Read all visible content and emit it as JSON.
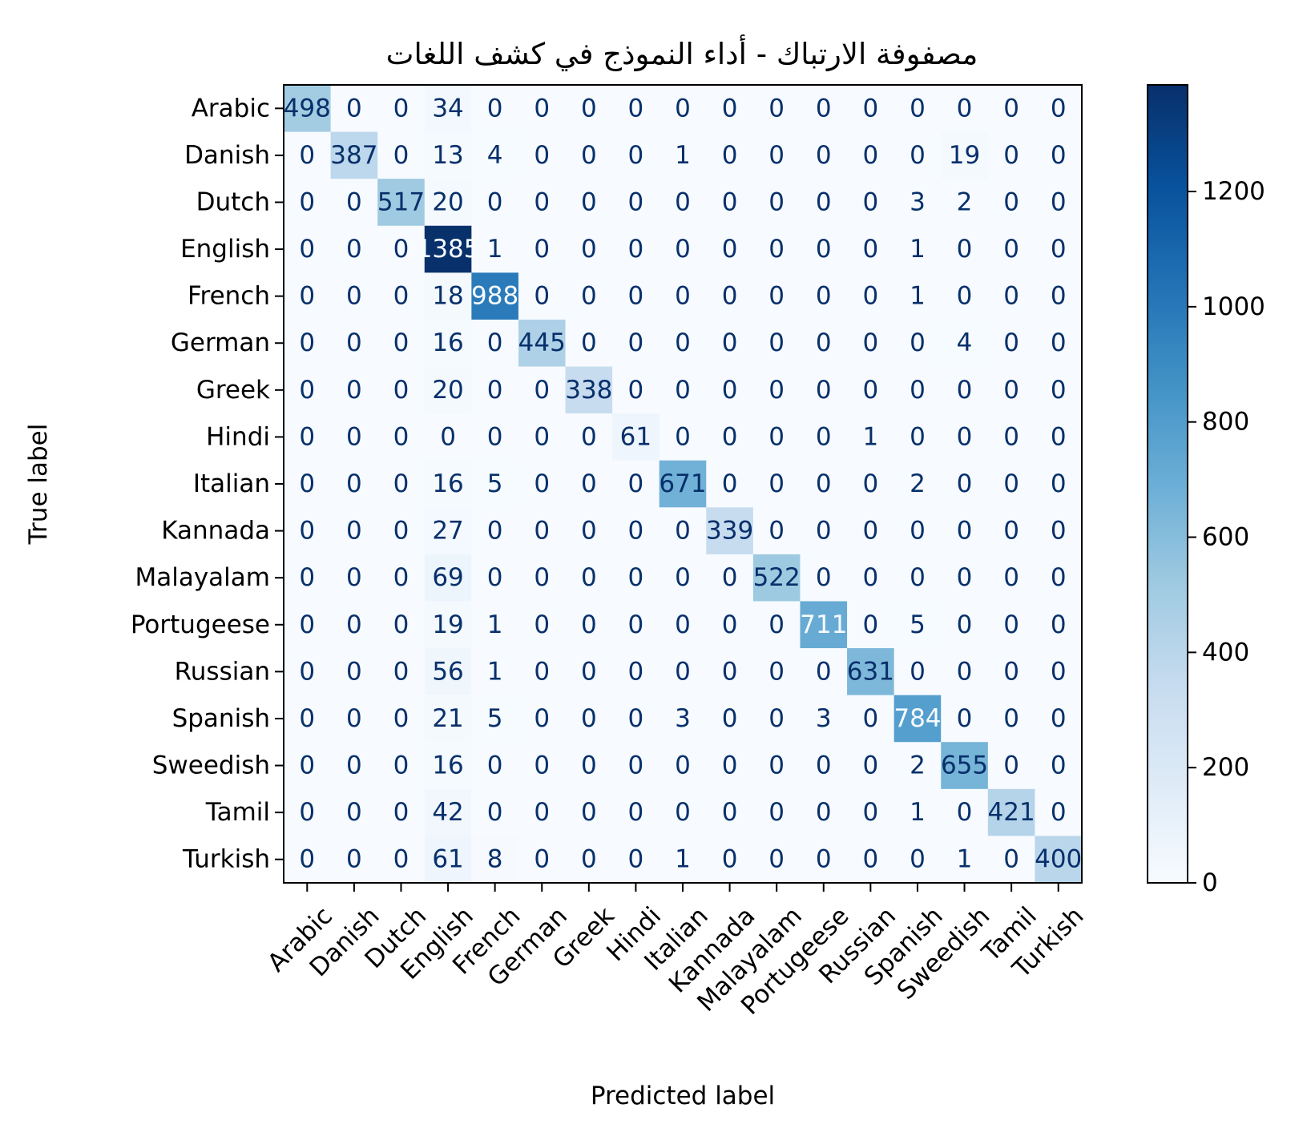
{
  "chart_data": {
    "type": "heatmap",
    "title": "مصفوفة الارتباك - أداء النموذج في كشف اللغات",
    "xlabel": "Predicted label",
    "ylabel": "True label",
    "labels": [
      "Arabic",
      "Danish",
      "Dutch",
      "English",
      "French",
      "German",
      "Greek",
      "Hindi",
      "Italian",
      "Kannada",
      "Malayalam",
      "Portugeese",
      "Russian",
      "Spanish",
      "Sweedish",
      "Tamil",
      "Turkish"
    ],
    "matrix": [
      [
        498,
        0,
        0,
        34,
        0,
        0,
        0,
        0,
        0,
        0,
        0,
        0,
        0,
        0,
        0,
        0,
        0
      ],
      [
        0,
        387,
        0,
        13,
        4,
        0,
        0,
        0,
        1,
        0,
        0,
        0,
        0,
        0,
        19,
        0,
        0
      ],
      [
        0,
        0,
        517,
        20,
        0,
        0,
        0,
        0,
        0,
        0,
        0,
        0,
        0,
        3,
        2,
        0,
        0
      ],
      [
        0,
        0,
        0,
        1385,
        1,
        0,
        0,
        0,
        0,
        0,
        0,
        0,
        0,
        1,
        0,
        0,
        0
      ],
      [
        0,
        0,
        0,
        18,
        988,
        0,
        0,
        0,
        0,
        0,
        0,
        0,
        0,
        1,
        0,
        0,
        0
      ],
      [
        0,
        0,
        0,
        16,
        0,
        445,
        0,
        0,
        0,
        0,
        0,
        0,
        0,
        0,
        4,
        0,
        0
      ],
      [
        0,
        0,
        0,
        20,
        0,
        0,
        338,
        0,
        0,
        0,
        0,
        0,
        0,
        0,
        0,
        0,
        0
      ],
      [
        0,
        0,
        0,
        0,
        0,
        0,
        0,
        61,
        0,
        0,
        0,
        0,
        1,
        0,
        0,
        0,
        0
      ],
      [
        0,
        0,
        0,
        16,
        5,
        0,
        0,
        0,
        671,
        0,
        0,
        0,
        0,
        2,
        0,
        0,
        0
      ],
      [
        0,
        0,
        0,
        27,
        0,
        0,
        0,
        0,
        0,
        339,
        0,
        0,
        0,
        0,
        0,
        0,
        0
      ],
      [
        0,
        0,
        0,
        69,
        0,
        0,
        0,
        0,
        0,
        0,
        522,
        0,
        0,
        0,
        0,
        0,
        0
      ],
      [
        0,
        0,
        0,
        19,
        1,
        0,
        0,
        0,
        0,
        0,
        0,
        711,
        0,
        5,
        0,
        0,
        0
      ],
      [
        0,
        0,
        0,
        56,
        1,
        0,
        0,
        0,
        0,
        0,
        0,
        0,
        631,
        0,
        0,
        0,
        0
      ],
      [
        0,
        0,
        0,
        21,
        5,
        0,
        0,
        0,
        3,
        0,
        0,
        3,
        0,
        784,
        0,
        0,
        0
      ],
      [
        0,
        0,
        0,
        16,
        0,
        0,
        0,
        0,
        0,
        0,
        0,
        0,
        0,
        2,
        655,
        0,
        0
      ],
      [
        0,
        0,
        0,
        42,
        0,
        0,
        0,
        0,
        0,
        0,
        0,
        0,
        0,
        1,
        0,
        421,
        0
      ],
      [
        0,
        0,
        0,
        61,
        8,
        0,
        0,
        0,
        1,
        0,
        0,
        0,
        0,
        0,
        1,
        0,
        400
      ]
    ],
    "colormap": "Blues",
    "colorbar": {
      "range": [
        0,
        1385
      ],
      "ticks": [
        0,
        200,
        400,
        600,
        800,
        1000,
        1200
      ]
    }
  }
}
